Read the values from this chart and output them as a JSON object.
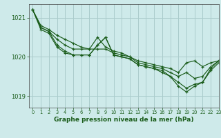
{
  "title": "Graphe pression niveau de la mer (hPa)",
  "bg_color": "#ceeaea",
  "grid_color": "#aacccc",
  "line_color": "#1a5c1a",
  "xlim": [
    -0.5,
    23
  ],
  "ylim": [
    1018.7,
    1021.35
  ],
  "yticks": [
    1019,
    1020,
    1021
  ],
  "xticks": [
    0,
    1,
    2,
    3,
    4,
    5,
    6,
    7,
    8,
    9,
    10,
    11,
    12,
    13,
    14,
    15,
    16,
    17,
    18,
    19,
    20,
    21,
    22,
    23
  ],
  "series": [
    [
      1021.2,
      1020.8,
      1020.7,
      1020.55,
      1020.45,
      1020.35,
      1020.25,
      1020.2,
      1020.2,
      1020.2,
      1020.1,
      1020.05,
      1020.0,
      1019.9,
      1019.85,
      1019.8,
      1019.75,
      1019.7,
      1019.6,
      1019.85,
      1019.9,
      1019.75,
      1019.85,
      1019.9
    ],
    [
      1021.2,
      1020.75,
      1020.65,
      1020.45,
      1020.3,
      1020.2,
      1020.2,
      1020.2,
      1020.5,
      1020.25,
      1020.15,
      1020.1,
      1020.0,
      1019.85,
      1019.8,
      1019.75,
      1019.7,
      1019.6,
      1019.5,
      1019.6,
      1019.45,
      1019.5,
      1019.75,
      1019.9
    ],
    [
      1021.2,
      1020.75,
      1020.65,
      1020.3,
      1020.15,
      1020.05,
      1020.05,
      1020.05,
      1020.3,
      1020.5,
      1020.05,
      1020.0,
      1019.95,
      1019.8,
      1019.75,
      1019.7,
      1019.65,
      1019.5,
      1019.35,
      1019.2,
      1019.3,
      1019.35,
      1019.7,
      1019.9
    ],
    [
      1021.2,
      1020.7,
      1020.6,
      1020.25,
      1020.1,
      1020.05,
      1020.05,
      1020.05,
      1020.3,
      1020.5,
      1020.05,
      1020.0,
      1019.95,
      1019.8,
      1019.75,
      1019.7,
      1019.6,
      1019.5,
      1019.25,
      1019.1,
      1019.25,
      1019.35,
      1019.65,
      1019.85
    ]
  ]
}
